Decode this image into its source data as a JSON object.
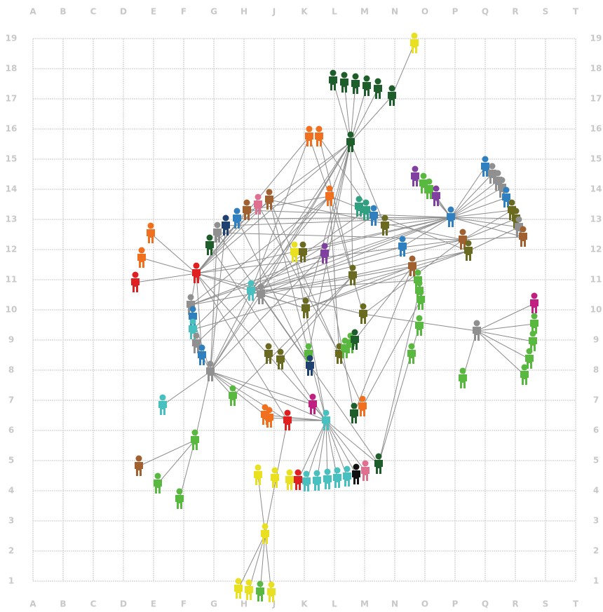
{
  "columns": [
    "A",
    "B",
    "C",
    "D",
    "E",
    "F",
    "G",
    "H",
    "J",
    "K",
    "L",
    "M",
    "N",
    "O",
    "P",
    "Q",
    "R",
    "S",
    "T"
  ],
  "rows": [
    "19",
    "18",
    "17",
    "16",
    "15",
    "14",
    "13",
    "12",
    "11",
    "10",
    "9",
    "8",
    "7",
    "6",
    "5",
    "4",
    "3",
    "2",
    "1"
  ]
}
